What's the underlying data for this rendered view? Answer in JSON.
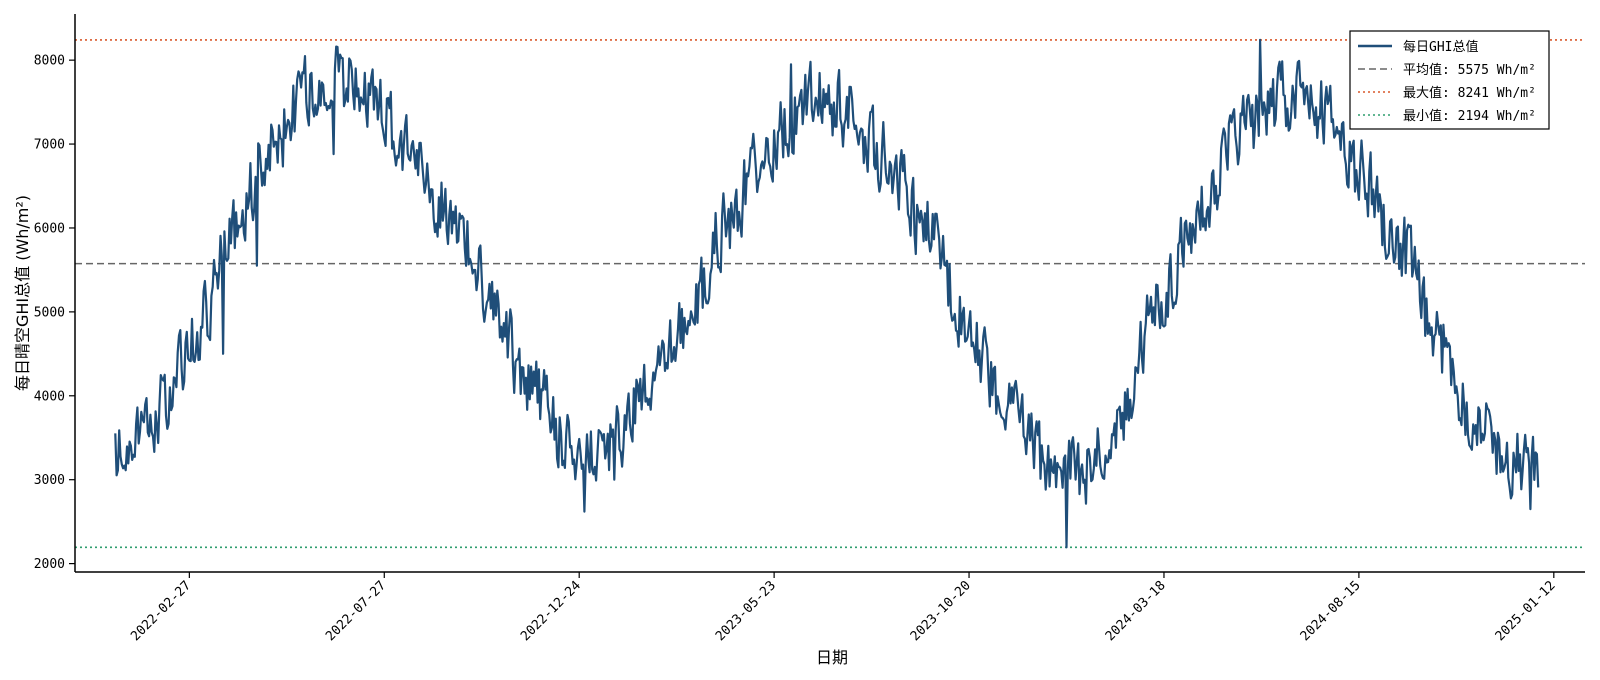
{
  "chart_data": {
    "type": "line",
    "title": "",
    "xlabel": "日期",
    "ylabel": "每日晴空GHI总值 (Wh/m²)",
    "x_range": [
      "2021-12-01",
      "2025-02-05"
    ],
    "ylim": [
      1900,
      8550
    ],
    "x_ticks": [
      "2022-02-27",
      "2022-07-27",
      "2022-12-24",
      "2023-05-23",
      "2023-10-20",
      "2024-03-18",
      "2024-08-15",
      "2025-01-12"
    ],
    "y_ticks": [
      2000,
      3000,
      4000,
      5000,
      6000,
      7000,
      8000
    ],
    "grid": false,
    "legend_position": "top-right",
    "series": [
      {
        "name": "每日GHI总值",
        "color": "#1f4e79",
        "start_date": "2022-01-01",
        "end_date": "2024-12-31",
        "anchors": [
          {
            "x": "2022-01-01",
            "y": 3250
          },
          {
            "x": "2022-02-01",
            "y": 3800
          },
          {
            "x": "2022-03-01",
            "y": 4600
          },
          {
            "x": "2022-04-01",
            "y": 5900
          },
          {
            "x": "2022-05-01",
            "y": 7000
          },
          {
            "x": "2022-06-01",
            "y": 7650
          },
          {
            "x": "2022-06-21",
            "y": 7750
          },
          {
            "x": "2022-07-15",
            "y": 7600
          },
          {
            "x": "2022-08-15",
            "y": 6900
          },
          {
            "x": "2022-09-15",
            "y": 6200
          },
          {
            "x": "2022-10-15",
            "y": 5300
          },
          {
            "x": "2022-11-15",
            "y": 4100
          },
          {
            "x": "2022-12-21",
            "y": 3350
          },
          {
            "x": "2023-01-15",
            "y": 3400
          },
          {
            "x": "2023-02-15",
            "y": 4000
          },
          {
            "x": "2023-03-15",
            "y": 4800
          },
          {
            "x": "2023-04-15",
            "y": 6000
          },
          {
            "x": "2023-05-15",
            "y": 6900
          },
          {
            "x": "2023-06-21",
            "y": 7550
          },
          {
            "x": "2023-07-15",
            "y": 7400
          },
          {
            "x": "2023-08-15",
            "y": 6900
          },
          {
            "x": "2023-09-15",
            "y": 6000
          },
          {
            "x": "2023-10-15",
            "y": 5000
          },
          {
            "x": "2023-11-15",
            "y": 4000
          },
          {
            "x": "2023-12-21",
            "y": 3150
          },
          {
            "x": "2024-01-15",
            "y": 3100
          },
          {
            "x": "2024-02-15",
            "y": 3800
          },
          {
            "x": "2024-03-15",
            "y": 5200
          },
          {
            "x": "2024-04-15",
            "y": 6200
          },
          {
            "x": "2024-05-15",
            "y": 7200
          },
          {
            "x": "2024-06-21",
            "y": 7550
          },
          {
            "x": "2024-07-15",
            "y": 7400
          },
          {
            "x": "2024-08-15",
            "y": 6700
          },
          {
            "x": "2024-09-15",
            "y": 5800
          },
          {
            "x": "2024-10-15",
            "y": 4600
          },
          {
            "x": "2024-11-15",
            "y": 3700
          },
          {
            "x": "2024-12-10",
            "y": 3200
          },
          {
            "x": "2024-12-31",
            "y": 3250
          }
        ],
        "daily_noise_amplitude": 550,
        "extremes": [
          {
            "x": "2024-05-31",
            "y": 8241
          },
          {
            "x": "2024-01-03",
            "y": 2194
          },
          {
            "x": "2022-12-28",
            "y": 2620
          },
          {
            "x": "2022-06-18",
            "y": 6880
          },
          {
            "x": "2022-07-05",
            "y": 7900
          },
          {
            "x": "2023-06-05",
            "y": 7950
          },
          {
            "x": "2022-04-20",
            "y": 5550
          },
          {
            "x": "2022-03-25",
            "y": 4500
          },
          {
            "x": "2023-01-20",
            "y": 3000
          },
          {
            "x": "2023-10-25",
            "y": 4400
          },
          {
            "x": "2024-12-25",
            "y": 2650
          }
        ]
      }
    ],
    "reference_lines": [
      {
        "name": "平均值: 5575 Wh/m²",
        "value": 5575,
        "color": "#666666",
        "style": "dashed"
      },
      {
        "name": "最大值: 8241 Wh/m²",
        "value": 8241,
        "color": "#d9582b",
        "style": "dotted"
      },
      {
        "name": "最小值: 2194 Wh/m²",
        "value": 2194,
        "color": "#2e9e6e",
        "style": "dotted"
      }
    ]
  }
}
